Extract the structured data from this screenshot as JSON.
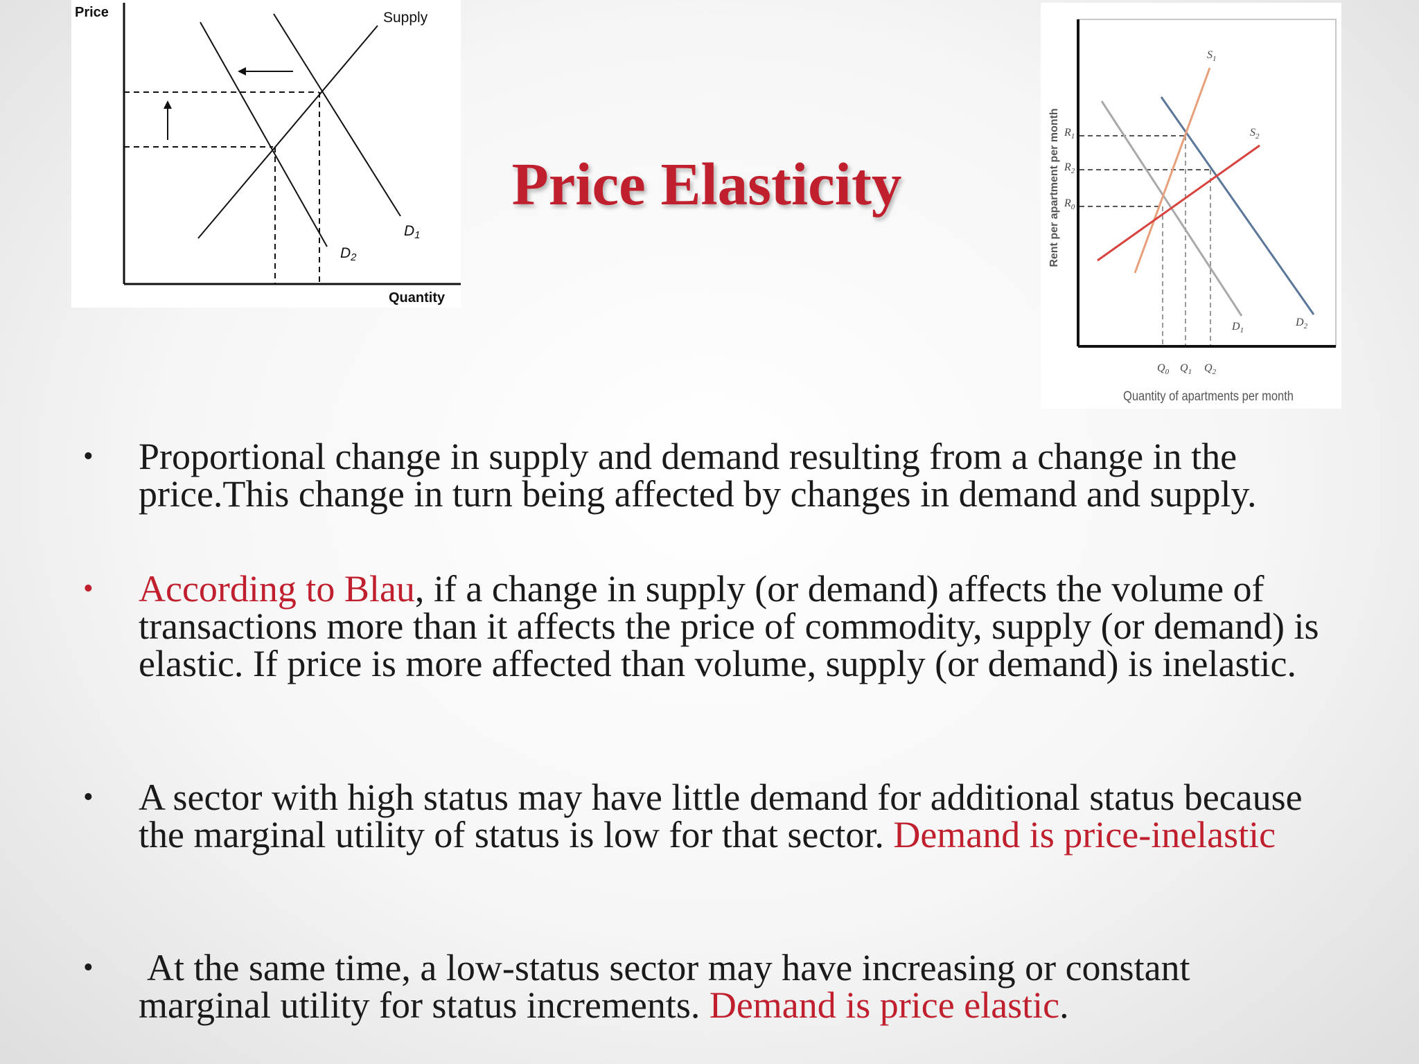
{
  "slide": {
    "title": "Price Elasticity"
  },
  "left_figure": {
    "y_axis_label": "Price",
    "x_axis_label": "Quantity",
    "supply_label": "Supply",
    "d1_label": "D",
    "d1_sub": "1",
    "d2_label": "D",
    "d2_sub": "2"
  },
  "right_figure": {
    "y_axis_label": "Rent per apartment per month",
    "x_axis_label": "Quantity of apartments per month",
    "price_labels": [
      {
        "main": "R",
        "sub": "1"
      },
      {
        "main": "R",
        "sub": "2"
      },
      {
        "main": "R",
        "sub": "0"
      }
    ],
    "quantity_labels": [
      {
        "main": "Q",
        "sub": "0"
      },
      {
        "main": "Q",
        "sub": "1"
      },
      {
        "main": "Q",
        "sub": "2"
      }
    ],
    "curve_labels": {
      "s1": {
        "main": "S",
        "sub": "1"
      },
      "s2": {
        "main": "S",
        "sub": "2"
      },
      "d1": {
        "main": "D",
        "sub": "1"
      },
      "d2": {
        "main": "D",
        "sub": "2"
      }
    },
    "colors": {
      "s1": "#e8a07a",
      "s2": "#d8433f",
      "d1": "#a9a9a9",
      "d2": "#5a7698"
    }
  },
  "bullets": [
    {
      "text": "Proportional change in supply and demand resulting from a change in the price.This change in turn being affected by changes in demand and supply."
    },
    {
      "lead": "According to Blau",
      "text": ", if a change in supply (or demand) affects the volume of transactions more than it affects the price of commodity, supply (or demand) is elastic. If price is more affected than volume, supply (or demand) is inelastic."
    },
    {
      "text": "A sector with high status may have little demand for additional status because the marginal utility of status is low for that sector. ",
      "highlight": "Demand is price-inelastic"
    },
    {
      "text": "At the same time, a low-status sector may have increasing or constant marginal utility for status increments. ",
      "highlight": "Demand is price elastic",
      "tail": "."
    }
  ],
  "bullet_symbol": "•",
  "accent_color": "#c0202e"
}
